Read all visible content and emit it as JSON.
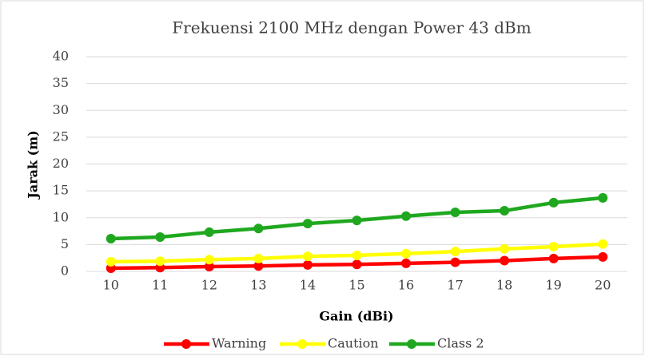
{
  "chart_data": {
    "type": "line",
    "title": "Frekuensi 2100 MHz dengan Power 43 dBm",
    "x_label": "Gain (dBi)",
    "y_label": "Jarak (m)",
    "categories": [
      "10",
      "11",
      "12",
      "13",
      "14",
      "15",
      "16",
      "17",
      "18",
      "19",
      "20"
    ],
    "series": [
      {
        "name": "Warning",
        "color": "#ff0000",
        "values": [
          0.6,
          0.7,
          0.9,
          1.0,
          1.2,
          1.3,
          1.5,
          1.7,
          2.0,
          2.4,
          2.7
        ]
      },
      {
        "name": "Caution",
        "color": "#ffff00",
        "values": [
          1.8,
          1.9,
          2.2,
          2.4,
          2.8,
          3.0,
          3.3,
          3.7,
          4.2,
          4.6,
          5.1
        ]
      },
      {
        "name": "Class 2",
        "color": "#1fa81f",
        "values": [
          6.1,
          6.4,
          7.3,
          8.0,
          8.9,
          9.5,
          10.3,
          11.0,
          11.3,
          12.8,
          13.7
        ]
      }
    ],
    "ylim": [
      0,
      40
    ],
    "yticks": [
      0,
      5,
      10,
      15,
      20,
      25,
      30,
      35,
      40
    ],
    "grid": true,
    "legend": "bottom"
  }
}
